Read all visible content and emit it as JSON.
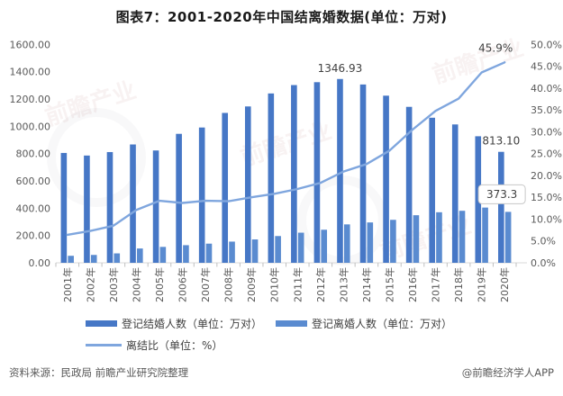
{
  "title": "图表7：2001-2020年中国结离婚数据(单位：万对)",
  "footer": {
    "source_note": "资料来源：民政局 前瞻产业研究院整理",
    "credit": "@前瞻经济学人APP"
  },
  "watermark": {
    "text": "前瞻产业"
  },
  "colors": {
    "marriage_bar": "#4677C6",
    "divorce_bar": "#5A8BD0",
    "ratio_line": "#7FA6DE",
    "axis_text": "#595959",
    "annotation_text": "#404040",
    "axis_line": "#d9d9d9",
    "tick_mark": "#c0c0c0",
    "callout_border": "#c8c8c8",
    "callout_fill": "#ffffff"
  },
  "chart_data": {
    "type": "bar",
    "subtype": "dual-axis bar + line combo",
    "categories": [
      "2001年",
      "2002年",
      "2003年",
      "2004年",
      "2005年",
      "2006年",
      "2007年",
      "2008年",
      "2009年",
      "2010年",
      "2011年",
      "2012年",
      "2013年",
      "2014年",
      "2015年",
      "2016年",
      "2017年",
      "2018年",
      "2019年",
      "2020年"
    ],
    "series": [
      {
        "name": "登记结婚人数（单位：万对）",
        "kind": "bar",
        "axis": "left",
        "values": [
          805.0,
          786.0,
          811.4,
          867.2,
          823.1,
          945.0,
          991.4,
          1098.3,
          1145.8,
          1241.0,
          1302.4,
          1323.6,
          1346.93,
          1306.7,
          1224.7,
          1142.8,
          1063.1,
          1013.9,
          927.3,
          813.1
        ]
      },
      {
        "name": "登记离婚人数（单位：万对）",
        "kind": "bar",
        "axis": "left",
        "values": [
          51.3,
          57.7,
          69.0,
          104.9,
          116.6,
          129.1,
          140.4,
          155.3,
          171.3,
          196.1,
          220.7,
          242.3,
          281.5,
          295.7,
          314.9,
          348.6,
          370.4,
          381.2,
          404.7,
          373.3
        ]
      },
      {
        "name": "离结比（单位：%）",
        "kind": "line",
        "axis": "right",
        "values": [
          6.4,
          7.3,
          8.5,
          12.1,
          14.2,
          13.7,
          14.2,
          14.1,
          15.0,
          15.8,
          16.9,
          18.3,
          20.9,
          22.6,
          25.7,
          30.5,
          34.8,
          37.6,
          43.6,
          45.9
        ]
      }
    ],
    "left_axis": {
      "min": 0,
      "max": 1600,
      "step": 200,
      "tick_labels": [
        "1600.00",
        "1400.00",
        "1200.00",
        "1000.00",
        "800.00",
        "600.00",
        "400.00",
        "200.00",
        "0.00"
      ]
    },
    "right_axis": {
      "min": 0,
      "max": 50,
      "step": 5,
      "tick_labels": [
        "50.0%",
        "45.0%",
        "40.0%",
        "35.0%",
        "30.0%",
        "25.0%",
        "20.0%",
        "15.0%",
        "10.0%",
        "5.0%",
        "0.0%"
      ]
    },
    "annotations": [
      {
        "text": "1346.93",
        "series": 0,
        "index": 12,
        "boxed": false
      },
      {
        "text": "813.10",
        "series": 0,
        "index": 19,
        "boxed": false
      },
      {
        "text": "373.3",
        "series": 1,
        "index": 19,
        "boxed": true
      },
      {
        "text": "45.9%",
        "series": 2,
        "index": 19,
        "boxed": false
      }
    ],
    "legend_position": "bottom",
    "grid": false
  }
}
